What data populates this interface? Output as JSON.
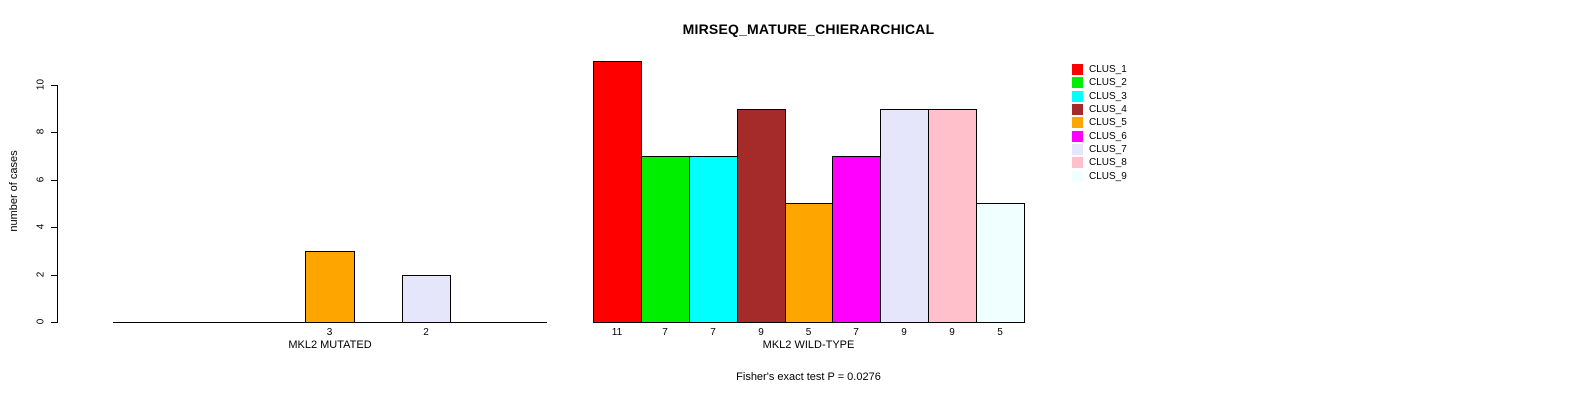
{
  "chart_data": {
    "type": "bar",
    "title": "MIRSEQ_MATURE_CHIERARCHICAL",
    "ylabel": "number of cases",
    "ylim": [
      0,
      10
    ],
    "yticks": [
      0,
      2,
      4,
      6,
      8,
      10
    ],
    "grid": false,
    "legend_position": "right",
    "categories": [
      "CLUS_1",
      "CLUS_2",
      "CLUS_3",
      "CLUS_4",
      "CLUS_5",
      "CLUS_6",
      "CLUS_7",
      "CLUS_8",
      "CLUS_9"
    ],
    "colors": [
      "#ff0000",
      "#00ee00",
      "#00ffff",
      "#a52a2a",
      "#ffa500",
      "#ff00ff",
      "#e6e6fa",
      "#ffc0cb",
      "#f0ffff"
    ],
    "series": [
      {
        "name": "MKL2 MUTATED",
        "values": [
          0,
          0,
          0,
          0,
          3,
          0,
          2,
          0,
          0
        ]
      },
      {
        "name": "MKL2 WILD-TYPE",
        "values": [
          11,
          7,
          7,
          9,
          5,
          7,
          9,
          9,
          5
        ]
      }
    ],
    "bar_value_labels_mutated": [
      "3",
      "2"
    ],
    "bar_value_labels_wildtype": [
      "11",
      "7",
      "7",
      "9",
      "5",
      "7",
      "9",
      "9",
      "5"
    ],
    "annotation": "Fisher's exact test P = 0.0276"
  }
}
